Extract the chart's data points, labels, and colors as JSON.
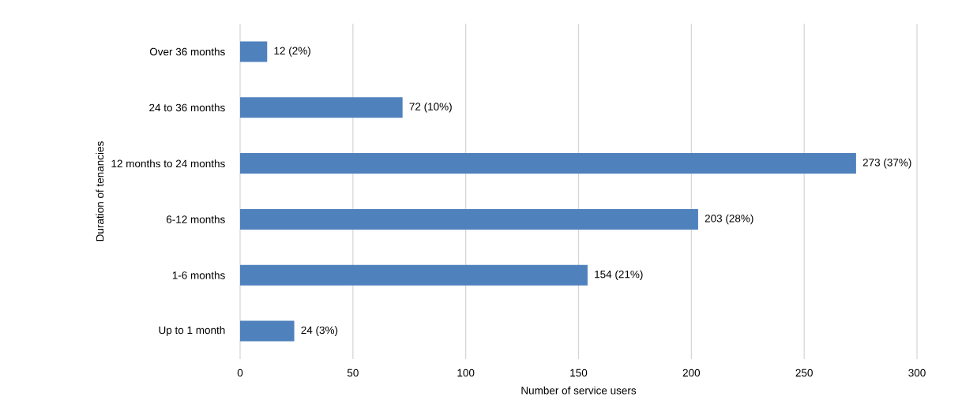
{
  "chart_data": {
    "type": "bar",
    "orientation": "horizontal",
    "xlabel": "Number of service users",
    "ylabel": "Duration of tenancies",
    "categories": [
      "Over 36 months",
      "24 to 36 months",
      "12 months to 24 months",
      "6-12 months",
      "1-6 months",
      "Up to 1 month"
    ],
    "values": [
      12,
      72,
      273,
      203,
      154,
      24
    ],
    "value_labels": [
      "12  (2%)",
      "72  (10%)",
      "273  (37%)",
      "203  (28%)",
      "154  (21%)",
      "24  (3%)"
    ],
    "color": "#4f81bd",
    "xlim": [
      0,
      300
    ],
    "xticks": [
      0,
      50,
      100,
      150,
      200,
      250,
      300
    ],
    "grid": "x"
  }
}
